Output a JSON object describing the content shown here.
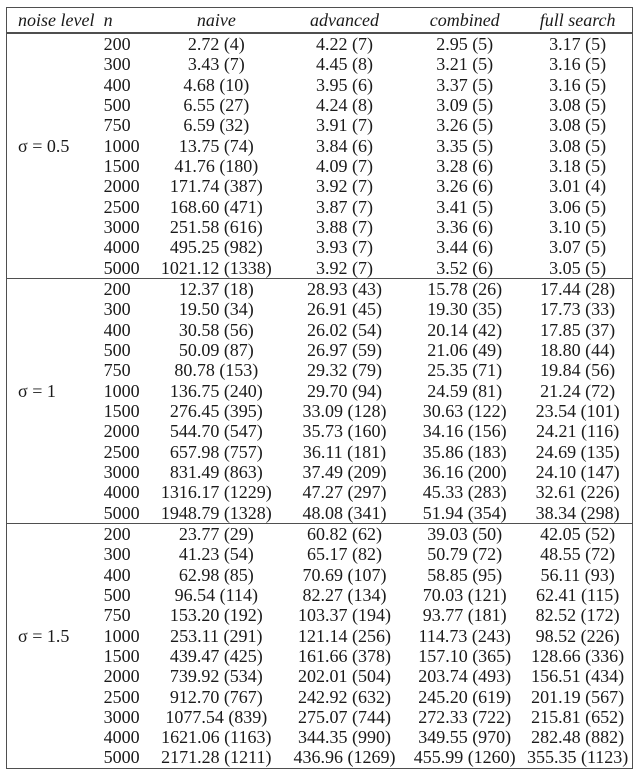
{
  "table": {
    "headers": [
      "noise level",
      "n",
      "naive",
      "advanced",
      "combined",
      "full search"
    ],
    "sections": [
      {
        "label": "σ = 0.5",
        "rows": [
          [
            "200",
            "2.72 (4)",
            "4.22 (7)",
            "2.95 (5)",
            "3.17 (5)"
          ],
          [
            "300",
            "3.43 (7)",
            "4.45 (8)",
            "3.21 (5)",
            "3.16 (5)"
          ],
          [
            "400",
            "4.68 (10)",
            "3.95 (6)",
            "3.37 (5)",
            "3.16 (5)"
          ],
          [
            "500",
            "6.55 (27)",
            "4.24 (8)",
            "3.09 (5)",
            "3.08 (5)"
          ],
          [
            "750",
            "6.59 (32)",
            "3.91 (7)",
            "3.26 (5)",
            "3.08 (5)"
          ],
          [
            "1000",
            "13.75 (74)",
            "3.84 (6)",
            "3.35 (5)",
            "3.08 (5)"
          ],
          [
            "1500",
            "41.76 (180)",
            "4.09 (7)",
            "3.28 (6)",
            "3.18 (5)"
          ],
          [
            "2000",
            "171.74 (387)",
            "3.92 (7)",
            "3.26 (6)",
            "3.01 (4)"
          ],
          [
            "2500",
            "168.60 (471)",
            "3.87 (7)",
            "3.41 (5)",
            "3.06 (5)"
          ],
          [
            "3000",
            "251.58 (616)",
            "3.88 (7)",
            "3.36 (6)",
            "3.10 (5)"
          ],
          [
            "4000",
            "495.25 (982)",
            "3.93 (7)",
            "3.44 (6)",
            "3.07 (5)"
          ],
          [
            "5000",
            "1021.12 (1338)",
            "3.92 (7)",
            "3.52 (6)",
            "3.05 (5)"
          ]
        ]
      },
      {
        "label": "σ = 1",
        "rows": [
          [
            "200",
            "12.37 (18)",
            "28.93 (43)",
            "15.78 (26)",
            "17.44 (28)"
          ],
          [
            "300",
            "19.50 (34)",
            "26.91 (45)",
            "19.30 (35)",
            "17.73 (33)"
          ],
          [
            "400",
            "30.58 (56)",
            "26.02 (54)",
            "20.14 (42)",
            "17.85 (37)"
          ],
          [
            "500",
            "50.09 (87)",
            "26.97 (59)",
            "21.06 (49)",
            "18.80 (44)"
          ],
          [
            "750",
            "80.78 (153)",
            "29.32 (79)",
            "25.35 (71)",
            "19.84 (56)"
          ],
          [
            "1000",
            "136.75 (240)",
            "29.70 (94)",
            "24.59 (81)",
            "21.24 (72)"
          ],
          [
            "1500",
            "276.45 (395)",
            "33.09 (128)",
            "30.63 (122)",
            "23.54 (101)"
          ],
          [
            "2000",
            "544.70 (547)",
            "35.73 (160)",
            "34.16 (156)",
            "24.21 (116)"
          ],
          [
            "2500",
            "657.98 (757)",
            "36.11 (181)",
            "35.86 (183)",
            "24.69 (135)"
          ],
          [
            "3000",
            "831.49 (863)",
            "37.49 (209)",
            "36.16 (200)",
            "24.10 (147)"
          ],
          [
            "4000",
            "1316.17 (1229)",
            "47.27 (297)",
            "45.33 (283)",
            "32.61 (226)"
          ],
          [
            "5000",
            "1948.79 (1328)",
            "48.08 (341)",
            "51.94 (354)",
            "38.34 (298)"
          ]
        ]
      },
      {
        "label": "σ = 1.5",
        "rows": [
          [
            "200",
            "23.77 (29)",
            "60.82 (62)",
            "39.03 (50)",
            "42.05 (52)"
          ],
          [
            "300",
            "41.23 (54)",
            "65.17 (82)",
            "50.79 (72)",
            "48.55 (72)"
          ],
          [
            "400",
            "62.98 (85)",
            "70.69 (107)",
            "58.85 (95)",
            "56.11 (93)"
          ],
          [
            "500",
            "96.54 (114)",
            "82.27 (134)",
            "70.03 (121)",
            "62.41 (115)"
          ],
          [
            "750",
            "153.20 (192)",
            "103.37 (194)",
            "93.77 (181)",
            "82.52 (172)"
          ],
          [
            "1000",
            "253.11 (291)",
            "121.14 (256)",
            "114.73 (243)",
            "98.52 (226)"
          ],
          [
            "1500",
            "439.47 (425)",
            "161.66 (378)",
            "157.10 (365)",
            "128.66 (336)"
          ],
          [
            "2000",
            "739.92 (534)",
            "202.01 (504)",
            "203.74 (493)",
            "156.51 (434)"
          ],
          [
            "2500",
            "912.70 (767)",
            "242.92 (632)",
            "245.20 (619)",
            "201.19 (567)"
          ],
          [
            "3000",
            "1077.54 (839)",
            "275.07 (744)",
            "272.33 (722)",
            "215.81 (652)"
          ],
          [
            "4000",
            "1621.06 (1163)",
            "344.35 (990)",
            "349.55 (970)",
            "282.48 (882)"
          ],
          [
            "5000",
            "2171.28 (1211)",
            "436.96 (1269)",
            "455.99 (1260)",
            "355.35 (1123)"
          ]
        ]
      }
    ]
  }
}
